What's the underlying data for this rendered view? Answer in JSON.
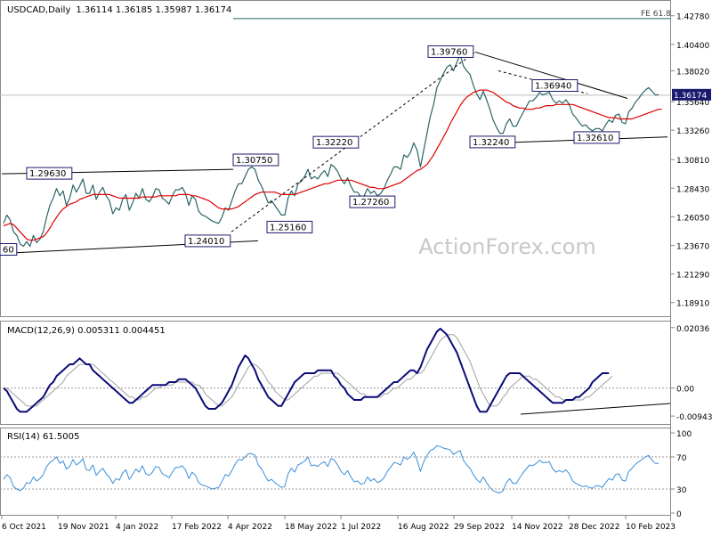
{
  "header": {
    "symbol": "USDCAD,Daily",
    "ohlc": "1.36114 1.36185 1.35987 1.36174"
  },
  "watermark": "ActionForex.com",
  "colors": {
    "price": "#2a6466",
    "ma": "#e00000",
    "trend": "#000000",
    "macd": "#0a0a78",
    "signal": "#a0a0a0",
    "rsi": "#3a8fd8",
    "grid": "#888888",
    "label_border": "#1a1a6e",
    "current_bg": "#1a1a6e"
  },
  "chart_data": [
    {
      "type": "line",
      "panel": "price",
      "ylim": [
        1.18,
        1.435
      ],
      "y_ticks": [
        1.4278,
        1.404,
        1.382,
        1.3564,
        1.3326,
        1.3081,
        1.2843,
        1.2605,
        1.2367,
        1.2129,
        1.1891
      ],
      "y_tick_labels": [
        "1.42780",
        "1.40400",
        "1.38020",
        "1.35640",
        "1.33260",
        "1.30810",
        "1.28430",
        "1.26050",
        "1.23670",
        "1.21290",
        "1.18910"
      ],
      "current_price": 1.36174,
      "current_price_label": "1.36174",
      "fe_level": 1.4255,
      "fe_label": "FE 61.8",
      "close": [
        1.255,
        1.262,
        1.258,
        1.248,
        1.245,
        1.238,
        1.236,
        1.24,
        1.236,
        1.245,
        1.239,
        1.242,
        1.248,
        1.26,
        1.27,
        1.276,
        1.284,
        1.278,
        1.282,
        1.27,
        1.276,
        1.287,
        1.281,
        1.286,
        1.292,
        1.28,
        1.28,
        1.287,
        1.275,
        1.281,
        1.285,
        1.278,
        1.274,
        1.263,
        1.268,
        1.266,
        1.275,
        1.279,
        1.266,
        1.272,
        1.28,
        1.276,
        1.284,
        1.275,
        1.273,
        1.277,
        1.284,
        1.283,
        1.276,
        1.274,
        1.271,
        1.278,
        1.283,
        1.283,
        1.285,
        1.28,
        1.27,
        1.278,
        1.275,
        1.265,
        1.262,
        1.261,
        1.259,
        1.257,
        1.256,
        1.255,
        1.26,
        1.268,
        1.266,
        1.274,
        1.282,
        1.288,
        1.288,
        1.294,
        1.3,
        1.302,
        1.3,
        1.291,
        1.286,
        1.279,
        1.272,
        1.274,
        1.27,
        1.266,
        1.262,
        1.262,
        1.276,
        1.282,
        1.278,
        1.288,
        1.29,
        1.294,
        1.3,
        1.292,
        1.294,
        1.292,
        1.296,
        1.299,
        1.294,
        1.304,
        1.302,
        1.298,
        1.292,
        1.288,
        1.293,
        1.286,
        1.281,
        1.281,
        1.277,
        1.278,
        1.284,
        1.28,
        1.282,
        1.278,
        1.28,
        1.284,
        1.291,
        1.296,
        1.302,
        1.302,
        1.3,
        1.312,
        1.31,
        1.314,
        1.322,
        1.316,
        1.302,
        1.316,
        1.33,
        1.344,
        1.354,
        1.368,
        1.374,
        1.38,
        1.385,
        1.387,
        1.382,
        1.389,
        1.396,
        1.386,
        1.382,
        1.379,
        1.37,
        1.363,
        1.358,
        1.365,
        1.358,
        1.35,
        1.341,
        1.335,
        1.33,
        1.33,
        1.338,
        1.342,
        1.336,
        1.336,
        1.342,
        1.347,
        1.352,
        1.357,
        1.357,
        1.36,
        1.364,
        1.362,
        1.363,
        1.364,
        1.358,
        1.355,
        1.357,
        1.355,
        1.358,
        1.354,
        1.346,
        1.343,
        1.339,
        1.336,
        1.337,
        1.334,
        1.332,
        1.334,
        1.334,
        1.332,
        1.337,
        1.341,
        1.339,
        1.345,
        1.346,
        1.339,
        1.338,
        1.348,
        1.351,
        1.356,
        1.359,
        1.363,
        1.366,
        1.368,
        1.365,
        1.362,
        1.362
      ],
      "ma": [
        1.253,
        1.254,
        1.255,
        1.254,
        1.251,
        1.248,
        1.245,
        1.242,
        1.241,
        1.241,
        1.242,
        1.243,
        1.244,
        1.247,
        1.251,
        1.256,
        1.26,
        1.264,
        1.267,
        1.269,
        1.271,
        1.272,
        1.273,
        1.275,
        1.276,
        1.277,
        1.278,
        1.279,
        1.279,
        1.279,
        1.279,
        1.279,
        1.279,
        1.278,
        1.277,
        1.276,
        1.276,
        1.276,
        1.276,
        1.276,
        1.276,
        1.276,
        1.277,
        1.277,
        1.277,
        1.277,
        1.277,
        1.278,
        1.278,
        1.278,
        1.278,
        1.278,
        1.278,
        1.279,
        1.279,
        1.279,
        1.279,
        1.278,
        1.278,
        1.277,
        1.276,
        1.275,
        1.274,
        1.272,
        1.27,
        1.268,
        1.267,
        1.267,
        1.267,
        1.267,
        1.268,
        1.269,
        1.271,
        1.273,
        1.275,
        1.277,
        1.279,
        1.28,
        1.281,
        1.281,
        1.281,
        1.281,
        1.281,
        1.28,
        1.279,
        1.279,
        1.279,
        1.279,
        1.279,
        1.28,
        1.281,
        1.282,
        1.283,
        1.284,
        1.285,
        1.286,
        1.287,
        1.288,
        1.288,
        1.289,
        1.29,
        1.291,
        1.291,
        1.291,
        1.291,
        1.291,
        1.29,
        1.289,
        1.288,
        1.287,
        1.286,
        1.285,
        1.285,
        1.284,
        1.284,
        1.284,
        1.285,
        1.286,
        1.287,
        1.288,
        1.289,
        1.291,
        1.293,
        1.295,
        1.297,
        1.299,
        1.3,
        1.302,
        1.304,
        1.308,
        1.312,
        1.317,
        1.322,
        1.327,
        1.332,
        1.338,
        1.343,
        1.348,
        1.353,
        1.357,
        1.36,
        1.362,
        1.364,
        1.365,
        1.366,
        1.366,
        1.366,
        1.365,
        1.364,
        1.362,
        1.36,
        1.358,
        1.356,
        1.355,
        1.353,
        1.352,
        1.351,
        1.351,
        1.35,
        1.35,
        1.35,
        1.351,
        1.351,
        1.352,
        1.353,
        1.353,
        1.353,
        1.354,
        1.354,
        1.354,
        1.354,
        1.354,
        1.354,
        1.353,
        1.352,
        1.351,
        1.35,
        1.349,
        1.348,
        1.347,
        1.346,
        1.345,
        1.344,
        1.343,
        1.343,
        1.343,
        1.342,
        1.342,
        1.342,
        1.342,
        1.342,
        1.343,
        1.344,
        1.345,
        1.346,
        1.347,
        1.348,
        1.349,
        1.35,
        1.35
      ],
      "annotations": [
        {
          "label": "1.29630"
        },
        {
          "label": "1.30750"
        },
        {
          "label": "1.24010"
        },
        {
          "label": "1.25160"
        },
        {
          "label": "1.32220"
        },
        {
          "label": "1.27260"
        },
        {
          "label": "1.39760"
        },
        {
          "label": "1.32240"
        },
        {
          "label": "1.36940"
        },
        {
          "label": "1.32610"
        },
        {
          "label": "60"
        }
      ],
      "x_tick_labels": [
        "6 Oct 2021",
        "19 Nov 2021",
        "4 Jan 2022",
        "17 Feb 2022",
        "4 Apr 2022",
        "18 May 2022",
        "1 Jul 2022",
        "16 Aug 2022",
        "29 Sep 2022",
        "14 Nov 2022",
        "28 Dec 2022",
        "10 Feb 2023"
      ]
    },
    {
      "type": "line",
      "panel": "macd",
      "title": "MACD(12,26,9) 0.005311 0.004451",
      "ylim": [
        -0.0115,
        0.0215
      ],
      "y_ticks": [
        0.02036,
        0.0,
        -0.009438
      ],
      "y_tick_labels": [
        "0.02036",
        "0.00",
        "-0.009438"
      ],
      "macd": [
        0.0,
        -0.001,
        -0.003,
        -0.005,
        -0.007,
        -0.008,
        -0.008,
        -0.008,
        -0.007,
        -0.006,
        -0.005,
        -0.004,
        -0.003,
        -0.001,
        0.001,
        0.002,
        0.004,
        0.005,
        0.006,
        0.007,
        0.008,
        0.008,
        0.009,
        0.01,
        0.009,
        0.008,
        0.008,
        0.006,
        0.005,
        0.004,
        0.003,
        0.002,
        0.001,
        0.0,
        -0.001,
        -0.002,
        -0.003,
        -0.004,
        -0.005,
        -0.005,
        -0.004,
        -0.003,
        -0.002,
        -0.001,
        0.0,
        0.001,
        0.001,
        0.001,
        0.001,
        0.001,
        0.002,
        0.002,
        0.002,
        0.003,
        0.003,
        0.003,
        0.002,
        0.001,
        0.0,
        -0.002,
        -0.004,
        -0.006,
        -0.007,
        -0.007,
        -0.007,
        -0.006,
        -0.005,
        -0.003,
        -0.001,
        0.001,
        0.004,
        0.007,
        0.009,
        0.011,
        0.01,
        0.008,
        0.006,
        0.003,
        0.001,
        -0.001,
        -0.003,
        -0.004,
        -0.005,
        -0.006,
        -0.006,
        -0.004,
        -0.002,
        0.0,
        0.002,
        0.003,
        0.004,
        0.005,
        0.005,
        0.005,
        0.005,
        0.006,
        0.006,
        0.006,
        0.006,
        0.006,
        0.004,
        0.003,
        0.001,
        0.0,
        -0.002,
        -0.003,
        -0.004,
        -0.004,
        -0.004,
        -0.003,
        -0.003,
        -0.003,
        -0.003,
        -0.003,
        -0.002,
        -0.001,
        0.0,
        0.001,
        0.002,
        0.002,
        0.003,
        0.004,
        0.005,
        0.006,
        0.006,
        0.005,
        0.007,
        0.01,
        0.013,
        0.015,
        0.017,
        0.019,
        0.02,
        0.019,
        0.018,
        0.016,
        0.014,
        0.012,
        0.009,
        0.006,
        0.003,
        0.0,
        -0.003,
        -0.006,
        -0.008,
        -0.008,
        -0.008,
        -0.006,
        -0.004,
        -0.002,
        0.0,
        0.002,
        0.004,
        0.005,
        0.005,
        0.005,
        0.005,
        0.004,
        0.003,
        0.002,
        0.001,
        0.0,
        -0.001,
        -0.002,
        -0.003,
        -0.004,
        -0.005,
        -0.005,
        -0.005,
        -0.005,
        -0.004,
        -0.004,
        -0.004,
        -0.003,
        -0.003,
        -0.002,
        -0.001,
        0.0,
        0.002,
        0.003,
        0.004,
        0.005,
        0.005,
        0.005
      ],
      "signal": [
        0.0,
        0.0,
        -0.001,
        -0.002,
        -0.003,
        -0.004,
        -0.005,
        -0.006,
        -0.006,
        -0.006,
        -0.006,
        -0.005,
        -0.004,
        -0.003,
        -0.002,
        -0.001,
        0.0,
        0.001,
        0.002,
        0.004,
        0.005,
        0.006,
        0.007,
        0.008,
        0.008,
        0.008,
        0.008,
        0.008,
        0.007,
        0.006,
        0.005,
        0.004,
        0.003,
        0.002,
        0.001,
        0.0,
        -0.001,
        -0.002,
        -0.003,
        -0.003,
        -0.004,
        -0.004,
        -0.003,
        -0.003,
        -0.002,
        -0.001,
        0.0,
        0.0,
        0.001,
        0.001,
        0.001,
        0.001,
        0.002,
        0.002,
        0.002,
        0.002,
        0.002,
        0.002,
        0.001,
        0.001,
        0.0,
        -0.002,
        -0.003,
        -0.004,
        -0.005,
        -0.006,
        -0.006,
        -0.005,
        -0.004,
        -0.003,
        -0.001,
        0.001,
        0.003,
        0.005,
        0.007,
        0.008,
        0.008,
        0.007,
        0.006,
        0.004,
        0.002,
        0.001,
        -0.001,
        -0.002,
        -0.003,
        -0.004,
        -0.004,
        -0.003,
        -0.002,
        -0.001,
        0.0,
        0.001,
        0.002,
        0.003,
        0.004,
        0.004,
        0.005,
        0.005,
        0.005,
        0.005,
        0.005,
        0.005,
        0.004,
        0.003,
        0.002,
        0.001,
        0.0,
        -0.001,
        -0.002,
        -0.002,
        -0.003,
        -0.003,
        -0.003,
        -0.003,
        -0.003,
        -0.002,
        -0.002,
        -0.001,
        0.0,
        0.0,
        0.001,
        0.002,
        0.003,
        0.003,
        0.004,
        0.005,
        0.005,
        0.006,
        0.008,
        0.01,
        0.012,
        0.014,
        0.016,
        0.017,
        0.018,
        0.018,
        0.018,
        0.017,
        0.015,
        0.013,
        0.011,
        0.009,
        0.006,
        0.003,
        0.0,
        -0.002,
        -0.004,
        -0.006,
        -0.006,
        -0.006,
        -0.005,
        -0.003,
        -0.002,
        0.0,
        0.001,
        0.002,
        0.003,
        0.004,
        0.004,
        0.004,
        0.003,
        0.003,
        0.002,
        0.001,
        0.0,
        -0.001,
        -0.002,
        -0.003,
        -0.003,
        -0.004,
        -0.004,
        -0.004,
        -0.004,
        -0.004,
        -0.004,
        -0.004,
        -0.003,
        -0.003,
        -0.002,
        -0.001,
        0.0,
        0.001,
        0.002,
        0.003,
        0.004
      ]
    },
    {
      "type": "line",
      "panel": "rsi",
      "title": "RSI(14) 61.5005",
      "ylim": [
        0,
        100
      ],
      "y_ticks": [
        100,
        70,
        30,
        0
      ],
      "y_tick_labels": [
        "100",
        "70",
        "30",
        "0"
      ],
      "levels": [
        70,
        30
      ],
      "values": [
        42,
        48,
        44,
        33,
        30,
        28,
        31,
        38,
        37,
        45,
        40,
        43,
        48,
        58,
        63,
        66,
        70,
        62,
        65,
        55,
        58,
        67,
        60,
        63,
        68,
        54,
        53,
        60,
        47,
        52,
        56,
        49,
        45,
        37,
        43,
        41,
        50,
        54,
        42,
        48,
        55,
        51,
        59,
        49,
        47,
        51,
        58,
        57,
        49,
        47,
        44,
        51,
        57,
        57,
        59,
        54,
        43,
        51,
        47,
        38,
        35,
        34,
        32,
        30,
        31,
        32,
        39,
        48,
        46,
        53,
        61,
        67,
        66,
        70,
        74,
        74,
        72,
        60,
        55,
        47,
        40,
        42,
        38,
        35,
        32,
        33,
        49,
        56,
        51,
        60,
        62,
        65,
        70,
        59,
        60,
        58,
        62,
        64,
        58,
        68,
        66,
        60,
        52,
        48,
        53,
        45,
        39,
        40,
        36,
        37,
        45,
        40,
        43,
        38,
        40,
        44,
        52,
        57,
        63,
        62,
        60,
        70,
        67,
        70,
        76,
        66,
        52,
        64,
        72,
        78,
        80,
        84,
        83,
        81,
        80,
        79,
        73,
        76,
        78,
        66,
        60,
        56,
        48,
        42,
        38,
        45,
        38,
        32,
        28,
        26,
        25,
        28,
        38,
        43,
        37,
        37,
        44,
        50,
        55,
        60,
        59,
        62,
        66,
        63,
        63,
        64,
        55,
        51,
        53,
        51,
        54,
        49,
        40,
        37,
        35,
        33,
        34,
        32,
        31,
        34,
        34,
        32,
        38,
        43,
        41,
        48,
        49,
        41,
        40,
        52,
        56,
        61,
        64,
        67,
        70,
        72,
        66,
        62,
        62
      ]
    }
  ]
}
